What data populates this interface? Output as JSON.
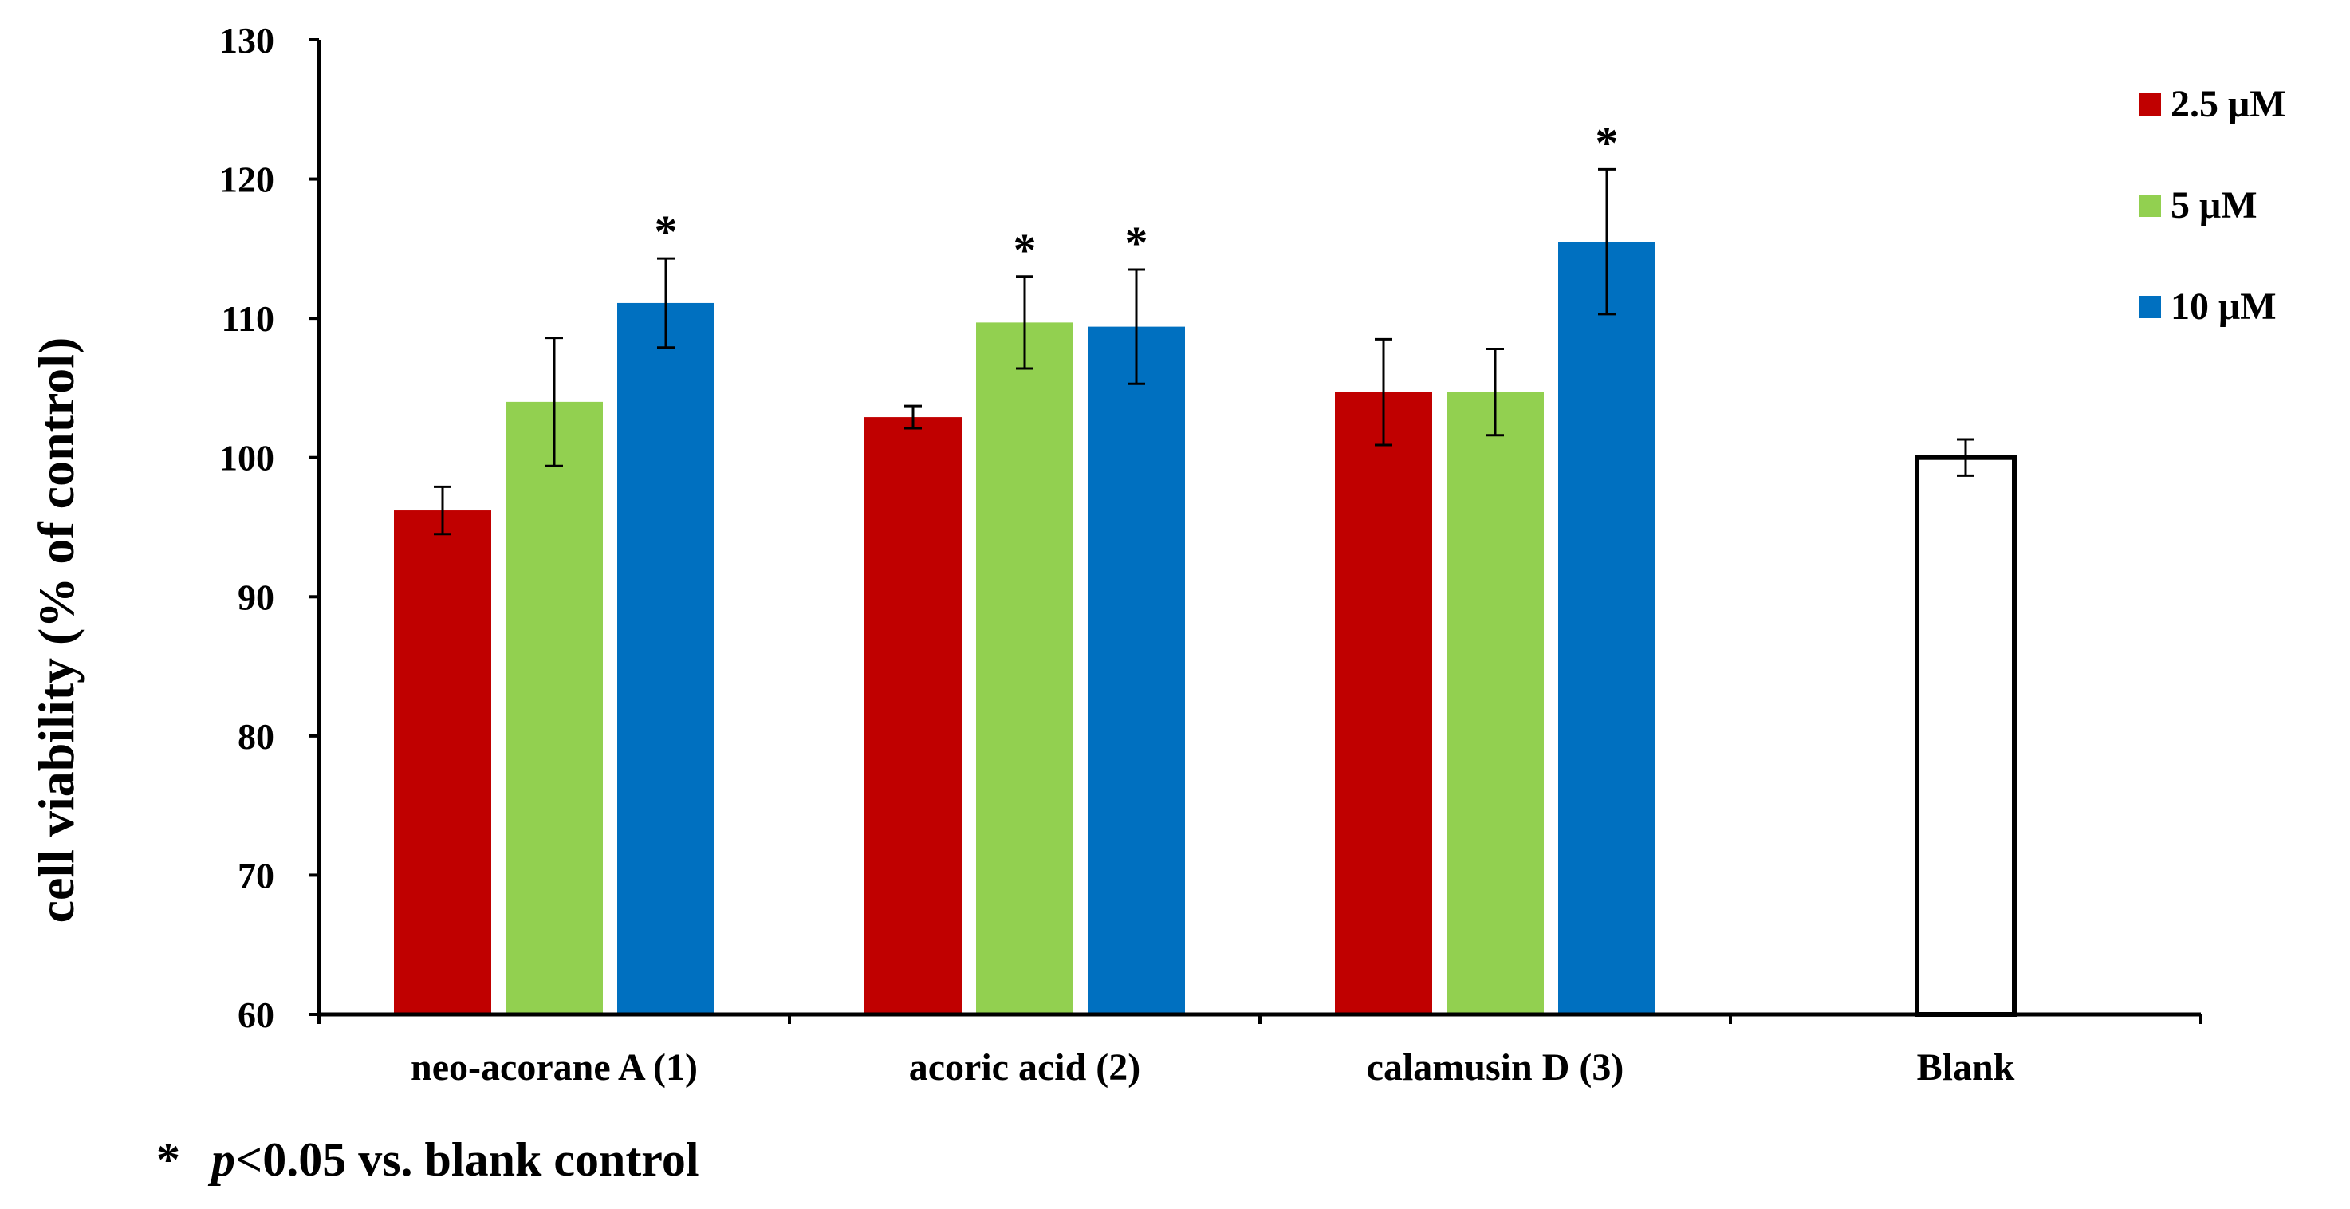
{
  "chart_data": {
    "type": "bar",
    "title": "",
    "xlabel": "",
    "ylabel": "cell viability (% of control)",
    "ylim": [
      60,
      130
    ],
    "yticks": [
      60,
      70,
      80,
      90,
      100,
      110,
      120,
      130
    ],
    "categories": [
      "neo-acorane A (1)",
      "acoric acid (2)",
      "calamusin D (3)",
      "Blank"
    ],
    "series": [
      {
        "name": "2.5 μM",
        "color": "#c00000",
        "values": [
          96.2,
          102.9,
          104.7,
          null
        ],
        "errors": [
          1.7,
          0.8,
          3.8,
          null
        ],
        "significant": [
          false,
          false,
          false,
          false
        ]
      },
      {
        "name": "5 μM",
        "color": "#92d050",
        "values": [
          104.0,
          109.7,
          104.7,
          null
        ],
        "errors": [
          4.6,
          3.3,
          3.1,
          null
        ],
        "significant": [
          false,
          true,
          false,
          false
        ]
      },
      {
        "name": "10 μM",
        "color": "#0070c0",
        "values": [
          111.1,
          109.4,
          115.5,
          null
        ],
        "errors": [
          3.2,
          4.1,
          5.2,
          null
        ],
        "significant": [
          true,
          true,
          true,
          false
        ]
      },
      {
        "name": "Blank",
        "color": "#ffffff",
        "values": [
          null,
          null,
          null,
          100.0
        ],
        "errors": [
          null,
          null,
          null,
          1.3
        ],
        "significant": [
          false,
          false,
          false,
          false
        ]
      }
    ],
    "legend": [
      "2.5 μM",
      "5 μM",
      "10 μM"
    ],
    "legend_position": "top-right",
    "significance_marker": "*",
    "grid": false
  },
  "footnote": {
    "star": "*",
    "p_symbol": "p",
    "rest": "<0.05 vs. blank control"
  }
}
